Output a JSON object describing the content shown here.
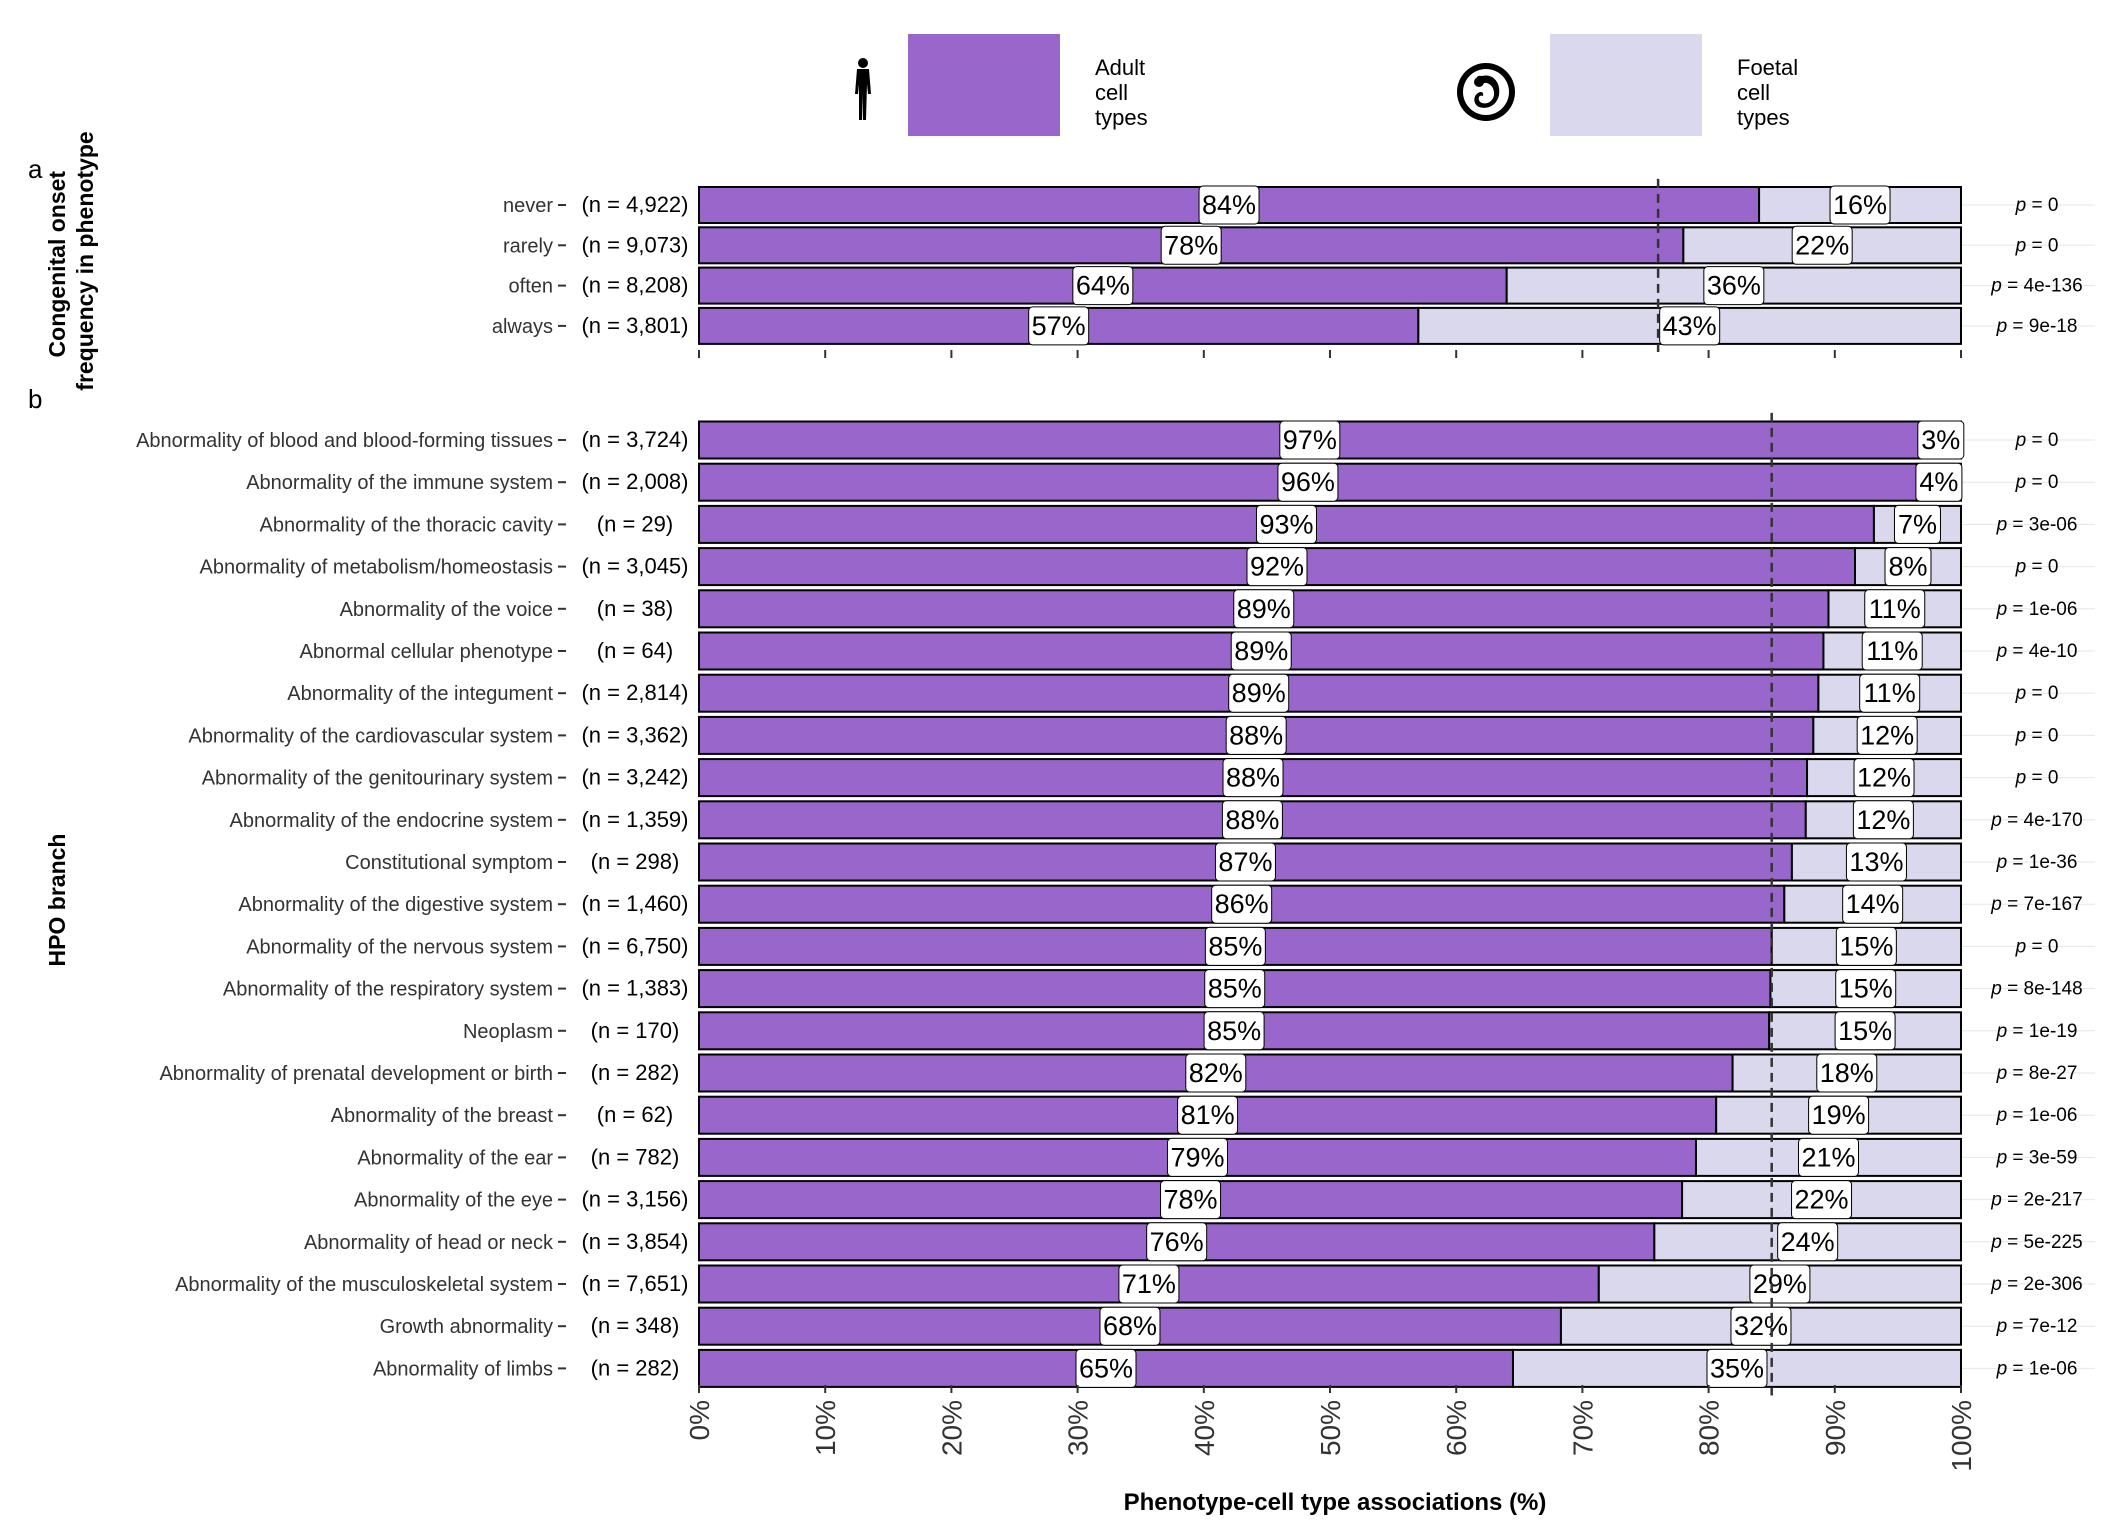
{
  "legend": {
    "items": [
      {
        "label": "Adult\ncell\ntypes",
        "color": "#9966cc",
        "icon": "adult-human-silhouette-icon"
      },
      {
        "label": "Foetal\ncell\ntypes",
        "color": "#d9d8ec",
        "icon": "foetus-icon"
      }
    ]
  },
  "colors": {
    "adult": "#9966cc",
    "foetal": "#d9d8ec",
    "border": "#000000",
    "gridline": "#e6e6e6"
  },
  "chart_data": [
    {
      "type": "bar",
      "orientation": "horizontal",
      "stacked": true,
      "panel_label": "a",
      "ylabel": "Congenital onset\nfrequency in phenotype",
      "categories": [
        "never",
        "rarely",
        "often",
        "always"
      ],
      "n_labels": [
        "(n = 4,922)",
        "(n = 9,073)",
        "(n = 8,208)",
        "(n = 3,801)"
      ],
      "series": [
        {
          "name": "Adult cell types",
          "values": [
            84,
            78,
            64,
            57
          ]
        },
        {
          "name": "Foetal cell types",
          "values": [
            16,
            22,
            36,
            43
          ]
        }
      ],
      "value_labels": {
        "adult": [
          "84%",
          "78%",
          "64%",
          "57%"
        ],
        "foetal": [
          "16%",
          "22%",
          "36%",
          "43%"
        ]
      },
      "p_values": [
        "0",
        "0",
        "4e-136",
        "9e-18"
      ],
      "reference_line": 76,
      "xlim": [
        0,
        100
      ]
    },
    {
      "type": "bar",
      "orientation": "horizontal",
      "stacked": true,
      "panel_label": "b",
      "ylabel": "HPO branch",
      "categories": [
        "Abnormality of blood and blood-forming tissues",
        "Abnormality of the immune system",
        "Abnormality of the thoracic cavity",
        "Abnormality of metabolism/homeostasis",
        "Abnormality of the voice",
        "Abnormal cellular phenotype",
        "Abnormality of the integument",
        "Abnormality of the cardiovascular system",
        "Abnormality of the genitourinary system",
        "Abnormality of the endocrine system",
        "Constitutional symptom",
        "Abnormality of the digestive system",
        "Abnormality of the nervous system",
        "Abnormality of the respiratory system",
        "Neoplasm",
        "Abnormality of prenatal development or birth",
        "Abnormality of the breast",
        "Abnormality of the ear",
        "Abnormality of the eye",
        "Abnormality of head or neck",
        "Abnormality of the musculoskeletal system",
        "Growth abnormality",
        "Abnormality of limbs"
      ],
      "n_labels": [
        "(n = 3,724)",
        "(n = 2,008)",
        "(n = 29)",
        "(n = 3,045)",
        "(n = 38)",
        "(n = 64)",
        "(n = 2,814)",
        "(n = 3,362)",
        "(n = 3,242)",
        "(n = 1,359)",
        "(n = 298)",
        "(n = 1,460)",
        "(n = 6,750)",
        "(n = 1,383)",
        "(n = 170)",
        "(n = 282)",
        "(n = 62)",
        "(n = 782)",
        "(n = 3,156)",
        "(n = 3,854)",
        "(n = 7,651)",
        "(n = 348)",
        "(n = 282)"
      ],
      "series": [
        {
          "name": "Adult cell types",
          "values": [
            96.8,
            96.5,
            93.1,
            91.6,
            89.5,
            89.1,
            88.7,
            88.3,
            87.8,
            87.7,
            86.6,
            86.0,
            85.0,
            84.9,
            84.8,
            81.9,
            80.6,
            79.0,
            77.9,
            75.7,
            71.3,
            68.3,
            64.5
          ]
        },
        {
          "name": "Foetal cell types",
          "values": [
            3.2,
            3.5,
            6.9,
            8.4,
            10.5,
            10.9,
            11.3,
            11.7,
            12.2,
            12.3,
            13.4,
            14.0,
            15.0,
            15.1,
            15.2,
            18.1,
            19.4,
            21.0,
            22.1,
            24.3,
            28.7,
            31.7,
            35.5
          ]
        }
      ],
      "value_labels": {
        "adult": [
          "97%",
          "96%",
          "93%",
          "92%",
          "89%",
          "89%",
          "89%",
          "88%",
          "88%",
          "88%",
          "87%",
          "86%",
          "85%",
          "85%",
          "85%",
          "82%",
          "81%",
          "79%",
          "78%",
          "76%",
          "71%",
          "68%",
          "65%"
        ],
        "foetal": [
          "3%",
          "4%",
          "7%",
          "8%",
          "11%",
          "11%",
          "11%",
          "12%",
          "12%",
          "12%",
          "13%",
          "14%",
          "15%",
          "15%",
          "15%",
          "18%",
          "19%",
          "21%",
          "22%",
          "24%",
          "29%",
          "32%",
          "35%"
        ]
      },
      "p_values": [
        "0",
        "0",
        "3e-06",
        "0",
        "1e-06",
        "4e-10",
        "0",
        "0",
        "0",
        "4e-170",
        "1e-36",
        "7e-167",
        "0",
        "8e-148",
        "1e-19",
        "8e-27",
        "1e-06",
        "3e-59",
        "2e-217",
        "5e-225",
        "2e-306",
        "7e-12",
        "1e-06"
      ],
      "reference_line": 85,
      "xlim": [
        0,
        100
      ],
      "xticks": [
        "0%",
        "10%",
        "20%",
        "30%",
        "40%",
        "50%",
        "60%",
        "70%",
        "80%",
        "90%",
        "100%"
      ],
      "xlabel": "Phenotype-cell type associations (%)"
    }
  ],
  "p_prefix": "p"
}
